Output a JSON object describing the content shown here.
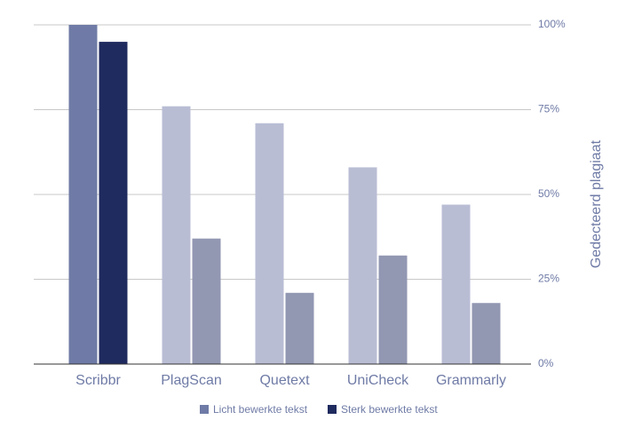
{
  "chart_data": {
    "type": "bar",
    "categories": [
      "Scribbr",
      "PlagScan",
      "Quetext",
      "UniCheck",
      "Grammarly"
    ],
    "series": [
      {
        "name": "Licht bewerkte tekst",
        "color": "#6f7ba6",
        "colors": [
          "#6f7ba6",
          "#b9bdd4",
          "#b9bdd4",
          "#b9bdd4",
          "#b9bdd4"
        ],
        "values": [
          100,
          76,
          71,
          58,
          47
        ]
      },
      {
        "name": "Sterk bewerkte tekst",
        "color": "#1f2a5e",
        "colors": [
          "#1f2a5e",
          "#9297b2",
          "#9297b2",
          "#9297b2",
          "#9297b2"
        ],
        "values": [
          95,
          37,
          21,
          32,
          18
        ]
      }
    ],
    "y_label": "Gedecteerd plagiaat",
    "ylim": [
      0,
      100
    ],
    "yticks": [
      {
        "value": 0,
        "label": "0%"
      },
      {
        "value": 25,
        "label": "25%"
      },
      {
        "value": 50,
        "label": "50%"
      },
      {
        "value": 75,
        "label": "75%"
      },
      {
        "value": 100,
        "label": "100%"
      }
    ],
    "grid": true,
    "axis_side": "right",
    "legend": "bottom"
  }
}
